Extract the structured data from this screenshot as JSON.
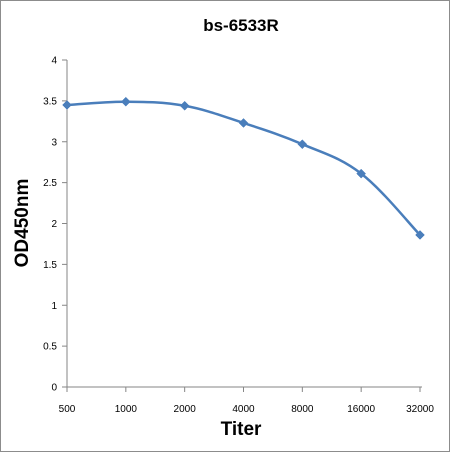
{
  "chart_data": {
    "type": "line",
    "title": "bs-6533R",
    "xlabel": "Titer",
    "ylabel": "OD450nm",
    "categories": [
      "500",
      "1000",
      "2000",
      "4000",
      "8000",
      "16000",
      "32000"
    ],
    "series": [
      {
        "values": [
          3.45,
          3.49,
          3.44,
          3.23,
          2.97,
          2.61,
          1.86
        ]
      }
    ],
    "yticks": [
      "0",
      "0.5",
      "1",
      "1.5",
      "2",
      "2.5",
      "3",
      "3.5",
      "4"
    ],
    "ylim": [
      0,
      4
    ],
    "grid": false,
    "legend": "none",
    "line_color": "#4a7ebb",
    "marker": "diamond"
  }
}
